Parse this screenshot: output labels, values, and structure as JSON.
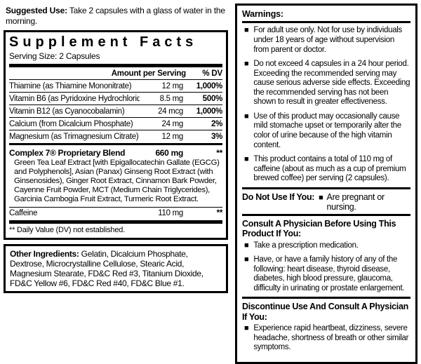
{
  "icons": {
    "bullet_square": "■"
  },
  "colors": {
    "ink": "#000000",
    "background": "#ffffff"
  },
  "suggested_use": {
    "label": "Suggested Use:",
    "text": "Take 2 capsules with a glass of water in the morning."
  },
  "supplement_facts": {
    "title": "Supplement Facts",
    "serving_size": "Serving Size: 2 Capsules",
    "col_amount": "Amount per Serving",
    "col_dv": "% DV",
    "rows": [
      {
        "name": "Thiamine (as Thiamine Mononitrate)",
        "amount": "12 mg",
        "dv": "1,000%"
      },
      {
        "name": "Vitamin B6 (as Pyridoxine Hydrochloride)",
        "amount": "8.5 mg",
        "dv": "500%"
      },
      {
        "name": "Vitamin B12 (as Cyanocobalamin)",
        "amount": "24 mcg",
        "dv": "1,000%"
      },
      {
        "name": "Calcium (from Dicalcium Phosphate)",
        "amount": "24 mg",
        "dv": "2%"
      },
      {
        "name": "Magnesium (as Trimagnesium Citrate)",
        "amount": "12 mg",
        "dv": "3%"
      }
    ],
    "blend": {
      "name": "Complex 7® Proprietary Blend",
      "amount": "660 mg",
      "dv": "**",
      "description": "Green Tea Leaf Extract [with Epigallocatechin Gallate (EGCG) and Polyphenols], Asian (Panax) Ginseng Root Extract (with Ginsenosides), Ginger Root Extract, Cinnamon Bark Powder, Cayenne Fruit Powder, MCT (Medium Chain Triglycerides), Garcinia Cambogia Fruit Extract, Turmeric Root Extract."
    },
    "caffeine": {
      "name": "Caffeine",
      "amount": "110 mg",
      "dv": "**"
    },
    "footnote": "** Daily Value (DV) not established."
  },
  "other_ingredients": {
    "label": "Other Ingredients:",
    "text": "Gelatin, Dicalcium Phosphate, Dextrose, Microcrystalline Cellulose, Stearic Acid, Magnesium Stearate, FD&C Red #3, Titanium Dioxide, FD&C Yellow #6, FD&C Red #40, FD&C Blue #1."
  },
  "warnings": {
    "title": "Warnings:",
    "items": [
      "For adult use only. Not for use by individuals under 18 years of age without supervision from parent or doctor.",
      "Do not exceed 4 capsules in a 24 hour period. Exceeding the recommended serving may cause serious adverse side effects. Exceeding the recommended serving has not been shown to result in greater effectiveness.",
      "Use of this product may occasionally cause mild stomache upset or temporarily alter the color of urine because of the high vitamin content.",
      "This product contains a total of 110 mg of caffeine (about as much as a cup of premium brewed coffee) per serving (2 capsules)."
    ]
  },
  "do_not_use": {
    "label": "Do Not Use If You:",
    "text": "Are pregnant or nursing."
  },
  "consult": {
    "title": "Consult A Physician Before Using This Product If You:",
    "items": [
      "Take a prescription medication.",
      "Have, or have a family history of any of the following: heart disease, thyroid disease, diabetes, high blood pressure, glaucoma, difficulty in urinating or prostate enlargement."
    ]
  },
  "discontinue": {
    "title": "Discontinue Use And Consult A Physician If You:",
    "items": [
      "Experience rapid heartbeat, dizziness, severe headache, shortness of breath or other similar symptoms."
    ]
  }
}
